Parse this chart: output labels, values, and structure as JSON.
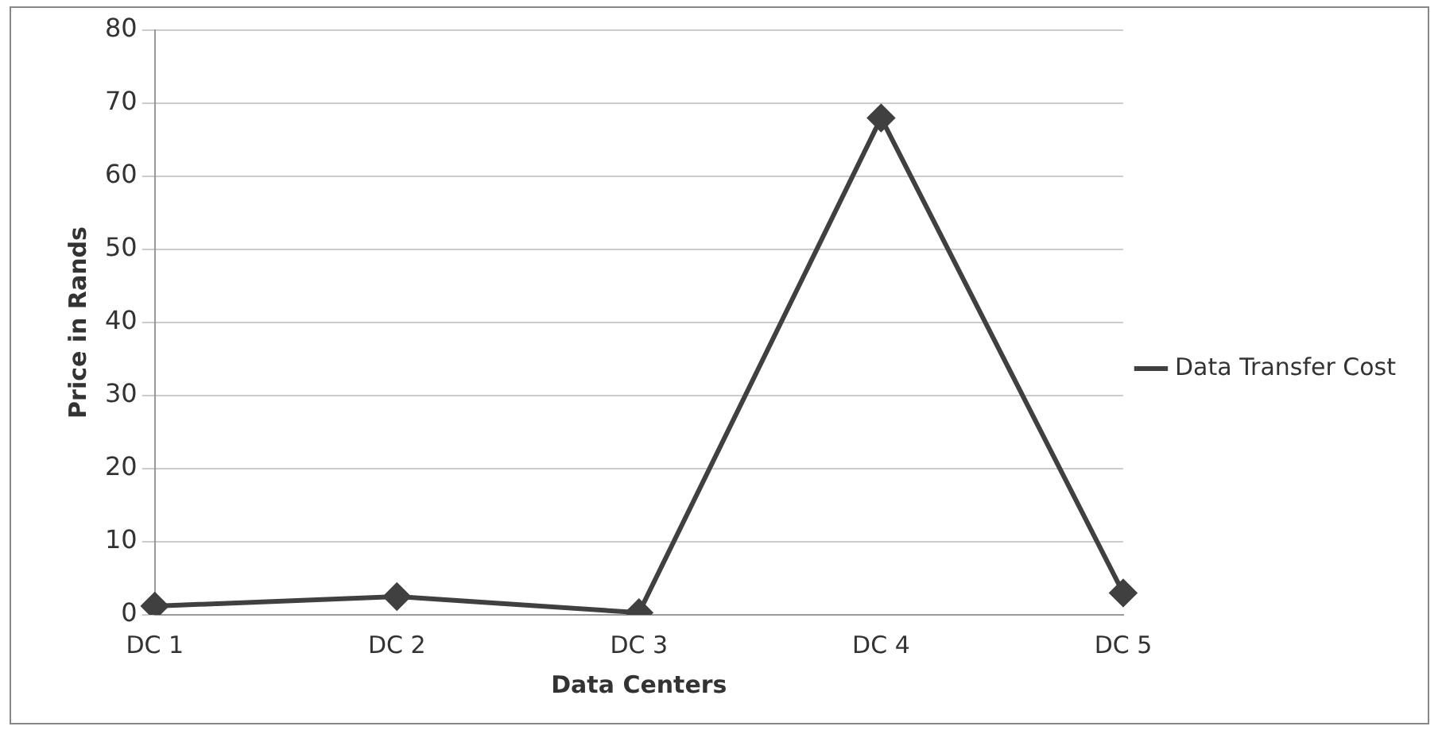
{
  "chart_data": {
    "type": "line",
    "xlabel": "Data Centers",
    "ylabel": "Price in Rands",
    "categories": [
      "DC 1",
      "DC 2",
      "DC 3",
      "DC 4",
      "DC 5"
    ],
    "series": [
      {
        "name": "Data Transfer Cost",
        "color": "#404040",
        "values": [
          1.2,
          2.5,
          0.3,
          68,
          3
        ]
      }
    ],
    "ylim": [
      0,
      80
    ],
    "yticks": [
      0,
      10,
      20,
      30,
      40,
      50,
      60,
      70,
      80
    ],
    "grid": "y",
    "legend": "right",
    "marker": "diamond",
    "line_style": "solid"
  }
}
